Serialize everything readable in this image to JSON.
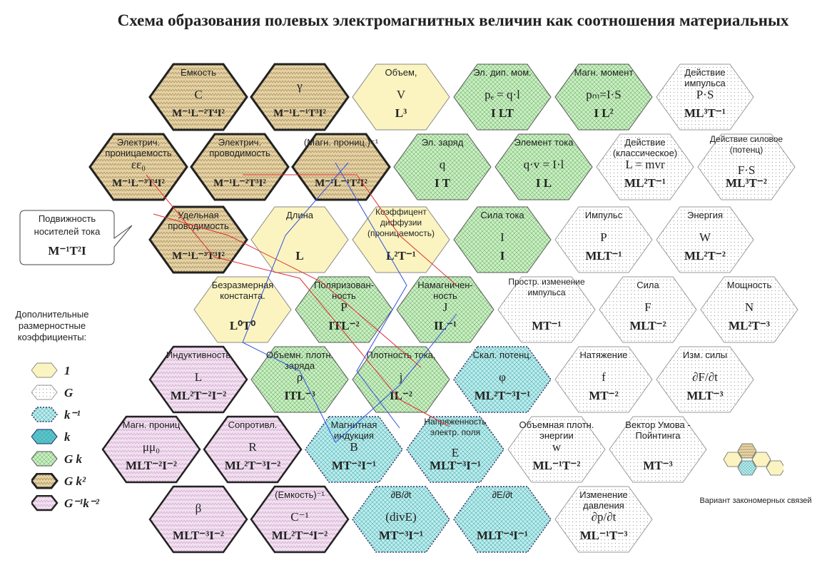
{
  "title": "Схема образования полевых электромагнитных  величин как соотношения материальных",
  "callout": {
    "label": "Подвижность носителей тока",
    "dim": "M⁻¹T²I"
  },
  "legend": {
    "caption": "Дополнительные размерностные коэффициенты:",
    "items": [
      {
        "style": "yellow",
        "text": "1"
      },
      {
        "style": "white",
        "text": "G"
      },
      {
        "style": "cyan",
        "text": "k⁻¹"
      },
      {
        "style": "teal",
        "text": "k"
      },
      {
        "style": "green",
        "text": "G k"
      },
      {
        "style": "tan",
        "text": "G k²"
      },
      {
        "style": "pink",
        "text": "G⁻¹k⁻²"
      }
    ]
  },
  "variant_caption": "Вариант закономерных связей",
  "palette": {
    "yellow": "#fbf4c0",
    "white": "#ffffff",
    "cyan": "#b8ecec",
    "teal": "#58c6cc",
    "green": "#c8eec0",
    "tan": "#e4d2a4",
    "pink": "#f2e0f0"
  },
  "rows": [
    [
      {
        "label": "Емкость",
        "symbol": "C",
        "dim": "M⁻¹L⁻²T⁴I²",
        "style": "tan"
      },
      {
        "label": "",
        "symbol": "γ",
        "dim": "M⁻¹L⁻¹T³I²",
        "style": "tan"
      },
      {
        "label": "Объем,",
        "symbol": "V",
        "dim": "L³",
        "style": "yellow"
      },
      {
        "label": "Эл. дип. мом.",
        "symbol": "pₑ = q·l",
        "dim": "I LT",
        "style": "green"
      },
      {
        "label": "Магн. момент",
        "symbol": "pₘ=I·S",
        "dim": "I L²",
        "style": "green"
      },
      {
        "label": "Действие импульса",
        "symbol": "P·S",
        "dim": "ML³T⁻¹",
        "style": "white"
      }
    ],
    [
      {
        "label": "Электрич. проницаемость",
        "symbol": "εε₀",
        "dim": "M⁻¹L⁻³T⁴I²",
        "style": "tan"
      },
      {
        "label": "Электрич. проводимость",
        "symbol": "",
        "dim": "M⁻¹L⁻²T³I²",
        "style": "tan"
      },
      {
        "label": "(Магн. прониц.)⁻¹",
        "symbol": "",
        "dim": "M⁻¹L⁻¹T²I²",
        "style": "tan"
      },
      {
        "label": "Эл. заряд",
        "symbol": "q",
        "dim": "I T",
        "style": "green"
      },
      {
        "label": "Элемент тока",
        "symbol": "q·v = I·l",
        "dim": "I L",
        "style": "green"
      },
      {
        "label": "Действие (классическое)",
        "symbol": "L = mvr",
        "dim": "ML²T⁻¹",
        "style": "white"
      },
      {
        "label": "Действие силовое (потенц)",
        "symbol": "F·S",
        "dim": "ML³T⁻²",
        "style": "white"
      }
    ],
    [
      {
        "label": "Удельная проводимость",
        "symbol": "",
        "dim": "M⁻¹L⁻³T³I²",
        "style": "tan"
      },
      {
        "label": "Длина",
        "symbol": "",
        "dim": "L",
        "style": "yellow"
      },
      {
        "label": "Коэффицент диффузии (проницаемость)",
        "symbol": "",
        "dim": "L²T⁻¹",
        "style": "yellow"
      },
      {
        "label": "Сила тока",
        "symbol": "I",
        "dim": "I",
        "style": "green"
      },
      {
        "label": "Импульс",
        "symbol": "P",
        "dim": "MLT⁻¹",
        "style": "white"
      },
      {
        "label": "Энергия",
        "symbol": "W",
        "dim": "ML²T⁻²",
        "style": "white"
      }
    ],
    [
      {
        "label": "Безразмерная константа.",
        "symbol": "",
        "dim": "L⁰T⁰",
        "style": "yellow"
      },
      {
        "label": "Поляризован- ность",
        "symbol": "P",
        "dim": "ITL⁻²",
        "style": "green"
      },
      {
        "label": "Намагничен- ность",
        "symbol": "J",
        "dim": "IL⁻¹",
        "style": "green"
      },
      {
        "label": "Простр. изменение импульса",
        "symbol": "",
        "dim": "MT⁻¹",
        "style": "white"
      },
      {
        "label": "Сила",
        "symbol": "F",
        "dim": "MLT⁻²",
        "style": "white"
      },
      {
        "label": "Мощность",
        "symbol": "N",
        "dim": "ML²T⁻³",
        "style": "white"
      }
    ],
    [
      {
        "label": "Индуктивность",
        "symbol": "L",
        "dim": "ML²T⁻²I⁻²",
        "style": "pink"
      },
      {
        "label": "Объемн. плотн. заряда",
        "symbol": "ρ",
        "dim": "ITL⁻³",
        "style": "green"
      },
      {
        "label": "Плотность тока,",
        "symbol": "j",
        "dim": "IL⁻²",
        "style": "green"
      },
      {
        "label": "Скал. потенц.",
        "symbol": "φ",
        "dim": "ML²T⁻³I⁻¹",
        "style": "cyan"
      },
      {
        "label": "Натяжение",
        "symbol": "f",
        "dim": "MT⁻²",
        "style": "white"
      },
      {
        "label": "Изм. силы",
        "symbol": "∂F/∂t",
        "dim": "MLT⁻³",
        "style": "white"
      }
    ],
    [
      {
        "label": "Магн. прониц",
        "symbol": "μμ₀",
        "dim": "MLT⁻²I⁻²",
        "style": "pink"
      },
      {
        "label": "Сопротивл.",
        "symbol": "R",
        "dim": "ML²T⁻³I⁻²",
        "style": "pink"
      },
      {
        "label": "Магнитная индукция",
        "symbol": "B",
        "dim": "MT⁻²I⁻¹",
        "style": "cyan"
      },
      {
        "label": "Напряженность электр. поля",
        "symbol": "E",
        "dim": "MLT⁻³I⁻¹",
        "style": "cyan"
      },
      {
        "label": "Объемная плотн. энергии",
        "symbol": "w",
        "dim": "ML⁻¹T⁻²",
        "style": "white"
      },
      {
        "label": "Вектор Умова - Пойнтинга",
        "symbol": "",
        "dim": "MT⁻³",
        "style": "white"
      }
    ],
    [
      {
        "label": "",
        "symbol": "β",
        "dim": "MLT⁻³I⁻²",
        "style": "pink"
      },
      {
        "label": "(Емкость)⁻¹",
        "symbol": "C⁻¹",
        "dim": "ML²T⁻⁴I⁻²",
        "style": "pink"
      },
      {
        "label": "∂B/∂t",
        "symbol": "(divE)",
        "dim": "MT⁻³I⁻¹",
        "style": "cyan"
      },
      {
        "label": "∂E/∂t",
        "symbol": "",
        "dim": "MLT⁻⁴I⁻¹",
        "style": "cyan"
      },
      {
        "label": "Изменение давления",
        "symbol": "∂p/∂t",
        "dim": "ML⁻¹T⁻³",
        "style": "white"
      }
    ]
  ]
}
